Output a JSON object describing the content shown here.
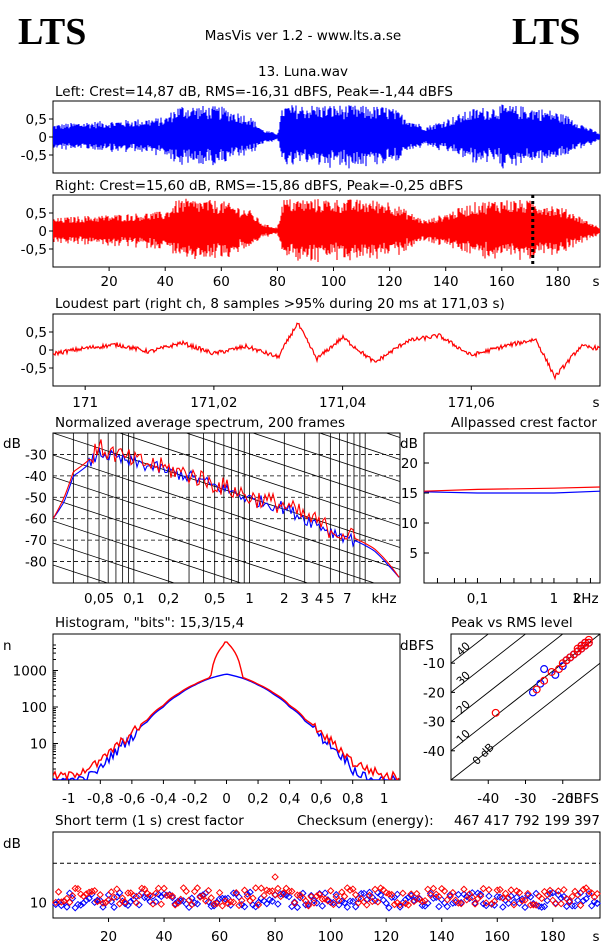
{
  "header": {
    "logo_left": "LTS",
    "logo_right": "LTS",
    "app_title": "MasVis ver 1.2 - www.lts.a.se",
    "file_title": "13. Luna.wav"
  },
  "colors": {
    "left": "#0000ff",
    "right": "#ff0000",
    "frame": "#000000"
  },
  "chart_data": [
    {
      "type": "line",
      "id": "left-waveform",
      "title": "Left: Crest=14,87 dB, RMS=-16,31 dBFS, Peak=-1,44 dBFS",
      "ylim": [
        -1,
        1
      ],
      "yticks": [
        "0,5",
        "0",
        "-0,5"
      ],
      "xlim": [
        0,
        195
      ],
      "series": [
        {
          "values_description_free": true,
          "color": "#0000ff",
          "envelope": {
            "t": [
              0,
              10,
              20,
              30,
              40,
              44,
              46,
              60,
              70,
              75,
              80,
              82,
              100,
              120,
              130,
              133,
              140,
              150,
              160,
              170,
              178,
              185,
              190,
              195
            ],
            "a": [
              0.35,
              0.42,
              0.45,
              0.5,
              0.55,
              0.85,
              0.9,
              0.85,
              0.6,
              0.2,
              0.1,
              0.9,
              0.9,
              0.85,
              0.4,
              0.3,
              0.5,
              0.8,
              0.9,
              0.85,
              0.75,
              0.55,
              0.3,
              0.1
            ]
          }
        }
      ]
    },
    {
      "type": "line",
      "id": "right-waveform",
      "title": "Right: Crest=15,60 dB, RMS=-15,86 dBFS, Peak=-0,25 dBFS",
      "ylim": [
        -1,
        1
      ],
      "yticks": [
        "0,5",
        "0",
        "-0,5"
      ],
      "xlim": [
        0,
        195
      ],
      "xticks": [
        "20",
        "40",
        "60",
        "80",
        "100",
        "120",
        "140",
        "160",
        "180",
        "s"
      ],
      "xtick_values": [
        20,
        40,
        60,
        80,
        100,
        120,
        140,
        160,
        180
      ],
      "marker_x": 171.03,
      "series": [
        {
          "color": "#ff0000",
          "envelope": {
            "t": [
              0,
              10,
              20,
              30,
              40,
              44,
              46,
              60,
              70,
              75,
              80,
              82,
              100,
              120,
              130,
              133,
              140,
              150,
              160,
              170,
              178,
              185,
              190,
              195
            ],
            "a": [
              0.35,
              0.42,
              0.45,
              0.5,
              0.55,
              0.85,
              0.9,
              0.85,
              0.6,
              0.2,
              0.1,
              0.9,
              0.9,
              0.85,
              0.4,
              0.3,
              0.5,
              0.8,
              0.9,
              0.85,
              0.75,
              0.55,
              0.3,
              0.1
            ]
          }
        }
      ]
    },
    {
      "type": "line",
      "id": "loudest-part",
      "title": "Loudest part (right ch, 8 samples >95% during 20 ms at 171,03 s)",
      "xlim": [
        170.995,
        171.08
      ],
      "ylim": [
        -1,
        1
      ],
      "yticks": [
        "0,5",
        "0",
        "-0,5"
      ],
      "xticks": [
        "171",
        "171,02",
        "171,04",
        "171,06",
        "s"
      ],
      "xtick_values": [
        171.0,
        171.02,
        171.04,
        171.06
      ],
      "series": [
        {
          "color": "#ff0000",
          "x": [
            170.995,
            171.0,
            171.005,
            171.01,
            171.015,
            171.02,
            171.025,
            171.03,
            171.033,
            171.036,
            171.04,
            171.045,
            171.05,
            171.055,
            171.06,
            171.065,
            171.07,
            171.073,
            171.077,
            171.08
          ],
          "y": [
            -0.1,
            0.05,
            0.15,
            -0.05,
            0.2,
            -0.1,
            0.1,
            -0.2,
            0.75,
            -0.25,
            0.35,
            -0.35,
            0.25,
            0.4,
            -0.15,
            0.1,
            0.3,
            -0.75,
            0.1,
            0.05
          ]
        }
      ]
    },
    {
      "type": "line",
      "id": "avg-spectrum",
      "title": "Normalized average spectrum, 200 frames",
      "ylabel": "dB",
      "xlabel": "kHz",
      "xscale": "log",
      "xlim": [
        0.02,
        20
      ],
      "ylim": [
        -90,
        -20
      ],
      "yticks": [
        "-30",
        "-40",
        "-50",
        "-60",
        "-70",
        "-80"
      ],
      "ytick_values": [
        -30,
        -40,
        -50,
        -60,
        -70,
        -80
      ],
      "xticks": [
        "0,05",
        "0,1",
        "0,2",
        "0,5",
        "1",
        "2",
        "3",
        "4",
        "5",
        "7",
        "kHz"
      ],
      "xtick_values": [
        0.05,
        0.1,
        0.2,
        0.5,
        1,
        2,
        3,
        4,
        5,
        7
      ],
      "series": [
        {
          "name": "",
          "color": "#0000ff",
          "x": [
            0.02,
            0.025,
            0.03,
            0.04,
            0.05,
            0.07,
            0.1,
            0.2,
            0.5,
            1,
            2,
            3,
            5,
            8,
            12,
            16,
            20
          ],
          "y": [
            -60,
            -52,
            -40,
            -35,
            -29,
            -32,
            -34,
            -38,
            -45,
            -51,
            -55,
            -60,
            -66,
            -70,
            -75,
            -82,
            -88
          ]
        },
        {
          "name": "",
          "color": "#ff0000",
          "x": [
            0.02,
            0.025,
            0.03,
            0.04,
            0.05,
            0.07,
            0.1,
            0.2,
            0.5,
            1,
            2,
            3,
            5,
            8,
            12,
            16,
            20
          ],
          "y": [
            -60,
            -50,
            -38,
            -33,
            -27,
            -30,
            -33,
            -37,
            -44,
            -50,
            -54,
            -59,
            -65,
            -69,
            -74,
            -81,
            -88
          ]
        }
      ]
    },
    {
      "type": "line",
      "id": "allpassed-crest",
      "title": "Allpassed crest factor",
      "ylabel": "dB",
      "xlabel": "kHz",
      "xscale": "log",
      "xlim": [
        0.02,
        4
      ],
      "ylim": [
        0,
        25
      ],
      "yticks": [
        "20",
        "15",
        "10",
        "5"
      ],
      "ytick_values": [
        20,
        15,
        10,
        5
      ],
      "xticks": [
        "0,1",
        "1",
        "2",
        "kHz"
      ],
      "xtick_values": [
        0.1,
        1,
        2
      ],
      "series": [
        {
          "color": "#0000ff",
          "x": [
            0.02,
            0.1,
            1,
            4
          ],
          "y": [
            15.2,
            15.0,
            15.0,
            15.3
          ]
        },
        {
          "color": "#ff0000",
          "x": [
            0.02,
            0.1,
            1,
            4
          ],
          "y": [
            15.3,
            15.6,
            15.8,
            16.0
          ]
        }
      ]
    },
    {
      "type": "bar",
      "id": "histogram",
      "title": "Histogram, \"bits\": 15,3/15,4",
      "ylabel": "n",
      "yscale": "log",
      "xlim": [
        -1.1,
        1.1
      ],
      "ylim": [
        1,
        10000
      ],
      "yticks": [
        "1000",
        "100",
        "10"
      ],
      "ytick_values": [
        1000,
        100,
        10
      ],
      "xticks": [
        "-1",
        "-0,8",
        "-0,6",
        "-0,4",
        "-0,2",
        "0",
        "0,2",
        "0,4",
        "0,6",
        "0,8",
        "1"
      ],
      "xtick_values": [
        -1,
        -0.8,
        -0.6,
        -0.4,
        -0.2,
        0,
        0.2,
        0.4,
        0.6,
        0.8,
        1
      ],
      "series": [
        {
          "color": "#0000ff",
          "x": [
            -0.9,
            -0.8,
            -0.7,
            -0.6,
            -0.5,
            -0.4,
            -0.3,
            -0.2,
            -0.1,
            0,
            0.1,
            0.2,
            0.3,
            0.4,
            0.5,
            0.6,
            0.7,
            0.8,
            0.9
          ],
          "y": [
            1,
            2,
            6,
            15,
            40,
            100,
            220,
            400,
            620,
            800,
            620,
            400,
            220,
            100,
            40,
            15,
            6,
            2,
            1
          ]
        },
        {
          "color": "#ff0000",
          "x": [
            -1.05,
            -1.0,
            -0.9,
            -0.8,
            -0.7,
            -0.6,
            -0.5,
            -0.4,
            -0.3,
            -0.2,
            -0.1,
            0,
            0.1,
            0.2,
            0.3,
            0.4,
            0.5,
            0.6,
            0.7,
            0.8,
            0.9,
            1.0,
            1.05
          ],
          "y": [
            1.3,
            1.3,
            2,
            3,
            8,
            18,
            45,
            110,
            240,
            420,
            650,
            6000,
            650,
            420,
            240,
            110,
            45,
            18,
            8,
            3,
            2,
            1.3,
            1.3
          ]
        }
      ]
    },
    {
      "type": "scatter",
      "id": "peak-vs-rms",
      "title": "Peak vs RMS level",
      "ylabel": "dBFS",
      "xlabel": "dBFS",
      "xlim": [
        -50,
        -10
      ],
      "ylim": [
        -50,
        0
      ],
      "yticks": [
        "-10",
        "-20",
        "-30",
        "-40"
      ],
      "ytick_values": [
        -10,
        -20,
        -30,
        -40
      ],
      "xticks": [
        "-40",
        "-30",
        "-20",
        "dBFS"
      ],
      "xtick_values": [
        -40,
        -30,
        -20
      ],
      "diag_labels": [
        "40",
        "30",
        "20",
        "10",
        "0 dB"
      ],
      "diag_offsets": [
        40,
        30,
        20,
        10,
        0
      ],
      "series": [
        {
          "color": "#0000ff",
          "x": [
            -28,
            -26,
            -25,
            -22,
            -20,
            -19,
            -18,
            -17,
            -16,
            -15,
            -15,
            -14,
            -14,
            -13
          ],
          "y": [
            -20,
            -17,
            -12,
            -14,
            -11,
            -9,
            -8,
            -7,
            -6,
            -5,
            -4,
            -4,
            -3,
            -3
          ]
        },
        {
          "color": "#ff0000",
          "x": [
            -38,
            -27,
            -25,
            -23,
            -21,
            -20,
            -19,
            -18,
            -17,
            -16,
            -16,
            -15,
            -15,
            -14,
            -14,
            -13,
            -13
          ],
          "y": [
            -27,
            -19,
            -16,
            -13,
            -12,
            -10,
            -9,
            -8,
            -7,
            -6,
            -5,
            -5,
            -4,
            -4,
            -3,
            -3,
            -2
          ]
        }
      ]
    },
    {
      "type": "scatter",
      "id": "short-term-crest",
      "title": "Short term (1 s) crest factor",
      "checksum_label": "Checksum (energy):",
      "checksum_value": "467 417 792 199 397",
      "ylabel": "dB",
      "xlim": [
        0,
        197
      ],
      "ylim": [
        6,
        28
      ],
      "yticks": [
        "10"
      ],
      "ytick_values": [
        10
      ],
      "ref_line": 20,
      "xticks": [
        "20",
        "40",
        "60",
        "80",
        "100",
        "120",
        "140",
        "160",
        "180",
        "s"
      ],
      "xtick_values": [
        20,
        40,
        60,
        80,
        100,
        120,
        140,
        160,
        180
      ],
      "series": [
        {
          "color": "#0000ff",
          "mean": 10.6,
          "spread": 2.0
        },
        {
          "color": "#ff0000",
          "mean": 11.4,
          "spread": 2.3,
          "outliers": [
            [
              80,
              16.5
            ]
          ]
        }
      ]
    }
  ]
}
